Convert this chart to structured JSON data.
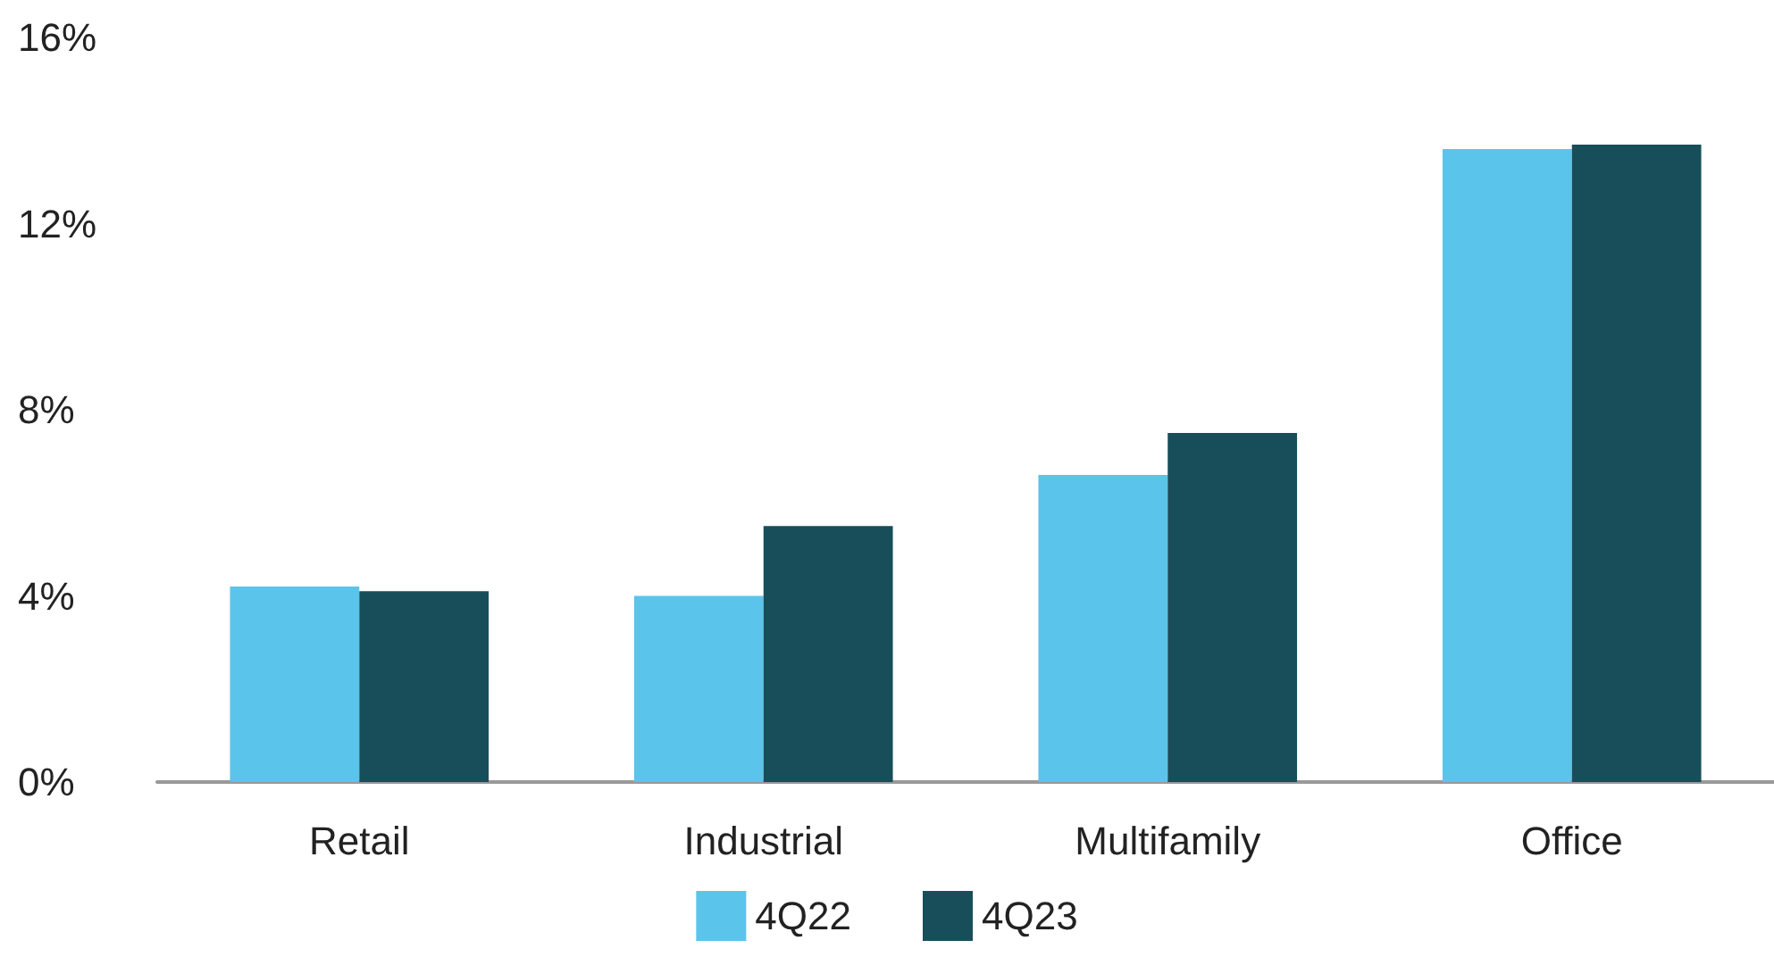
{
  "chart_data": {
    "type": "bar",
    "categories": [
      "Retail",
      "Industrial",
      "Multifamily",
      "Office"
    ],
    "series": [
      {
        "name": "4Q22",
        "color": "#5bc4ea",
        "values": [
          4.2,
          4.0,
          6.6,
          13.6
        ]
      },
      {
        "name": "4Q23",
        "color": "#174e5a",
        "values": [
          4.1,
          5.5,
          7.5,
          13.7
        ]
      }
    ],
    "ylim": [
      0,
      16
    ],
    "yticks": [
      {
        "value": 0,
        "label": "0%"
      },
      {
        "value": 4,
        "label": "4%"
      },
      {
        "value": 8,
        "label": "8%"
      },
      {
        "value": 12,
        "label": "12%"
      },
      {
        "value": 16,
        "label": "16%"
      }
    ],
    "grid": false,
    "legend": "bottom"
  }
}
